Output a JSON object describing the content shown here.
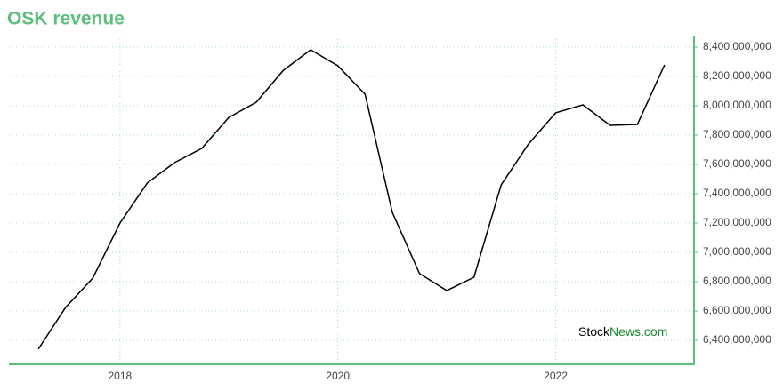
{
  "chart_data": {
    "type": "line",
    "title": "OSK revenue",
    "x": [
      2017.25,
      2017.5,
      2017.75,
      2018.0,
      2018.25,
      2018.5,
      2018.75,
      2019.0,
      2019.25,
      2019.5,
      2019.75,
      2020.0,
      2020.25,
      2020.5,
      2020.75,
      2021.0,
      2021.25,
      2021.5,
      2021.75,
      2022.0,
      2022.25,
      2022.5,
      2022.75,
      2023.0
    ],
    "series": [
      {
        "color": "#000000",
        "values": [
          6340000000,
          6624000000,
          6824000000,
          7200000000,
          7473000000,
          7612000000,
          7709000000,
          7921000000,
          8024000000,
          8242000000,
          8382000000,
          8273000000,
          8079000000,
          7273000000,
          6855000000,
          6739000000,
          6830000000,
          7461000000,
          7739000000,
          7952000000,
          8006000000,
          7867000000,
          7873000000,
          8279000000
        ]
      }
    ],
    "xlim": [
      2016.98,
      2023.27
    ],
    "xticks": [
      2018,
      2020,
      2022
    ],
    "ylim": [
      6236000000,
      8479000000
    ],
    "yticks": [
      {
        "value": 6400000000,
        "label": "6,400,000,000"
      },
      {
        "value": 6600000000,
        "label": "6,600,000,000"
      },
      {
        "value": 6800000000,
        "label": "6,800,000,000"
      },
      {
        "value": 7000000000,
        "label": "7,000,000,000"
      },
      {
        "value": 7200000000,
        "label": "7,200,000,000"
      },
      {
        "value": 7400000000,
        "label": "7,400,000,000"
      },
      {
        "value": 7600000000,
        "label": "7,600,000,000"
      },
      {
        "value": 7800000000,
        "label": "7,800,000,000"
      },
      {
        "value": 8000000000,
        "label": "8,000,000,000"
      },
      {
        "value": 8200000000,
        "label": "8,200,000,000"
      },
      {
        "value": 8400000000,
        "label": "8,400,000,000"
      }
    ],
    "grid": true,
    "axis_color": "#5cbf7c",
    "watermark": [
      "Stock",
      "News.com"
    ]
  }
}
